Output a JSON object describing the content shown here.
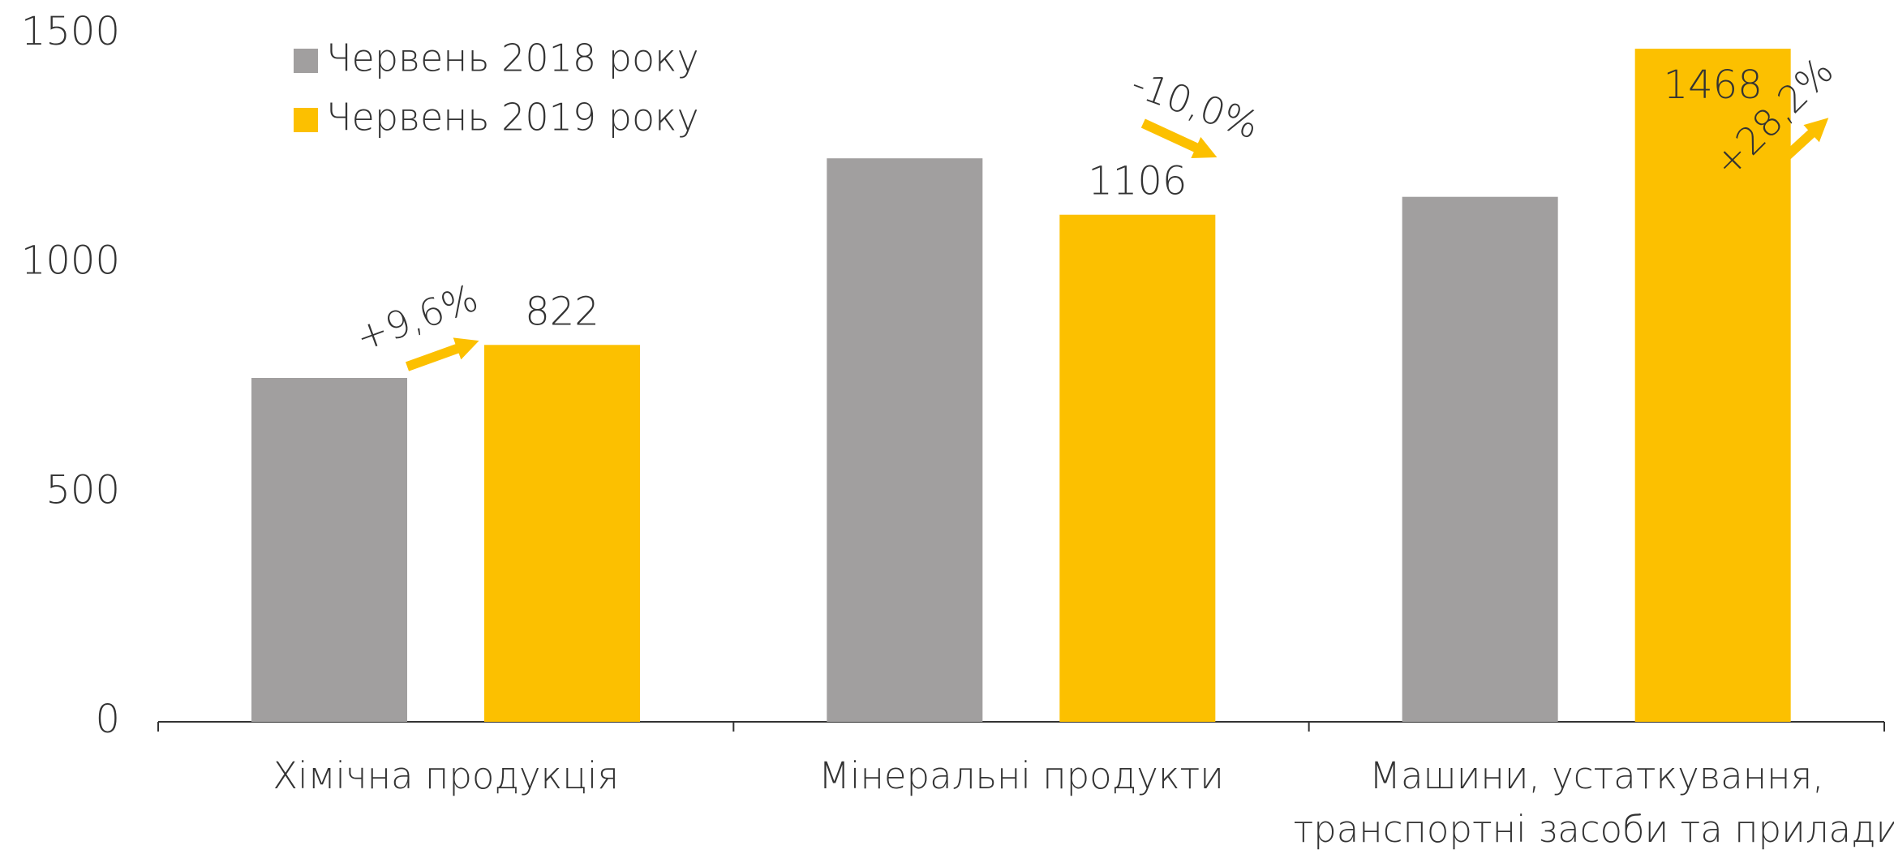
{
  "chart_data": {
    "type": "bar",
    "categories": [
      "Хімічна продукція",
      "Мінеральні продукти",
      "Машини, устаткування,\nтранспортні засоби та прилади"
    ],
    "series": [
      {
        "name": "Червень 2018 року",
        "color": "#a19f9f",
        "values": [
          750,
          1229,
          1145
        ]
      },
      {
        "name": "Червень 2019 року",
        "color": "#fcc000",
        "values": [
          822,
          1106,
          1468
        ],
        "data_labels": true
      }
    ],
    "annotations": [
      "+9,6%",
      "-10,0%",
      "+28,2%"
    ],
    "ylim": [
      0,
      1500
    ],
    "yticks": [
      0,
      500,
      1000,
      1500
    ],
    "grid": false,
    "legend": "top-left"
  }
}
